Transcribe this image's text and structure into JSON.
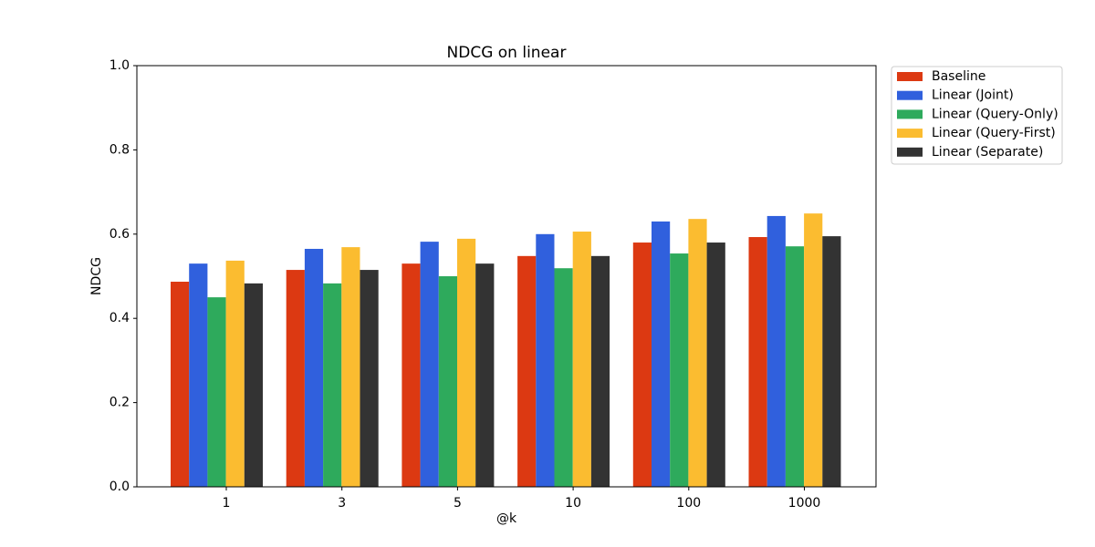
{
  "chart_data": {
    "type": "bar",
    "title": "NDCG on linear",
    "x_label": "@k",
    "y_label": "NDCG",
    "categories": [
      "1",
      "3",
      "5",
      "10",
      "100",
      "1000"
    ],
    "series": [
      {
        "name": "Baseline",
        "color": "#dc3912",
        "values": [
          0.487,
          0.515,
          0.53,
          0.548,
          0.58,
          0.593
        ]
      },
      {
        "name": "Linear (Joint)",
        "color": "#3060dd",
        "values": [
          0.53,
          0.565,
          0.582,
          0.6,
          0.63,
          0.643
        ]
      },
      {
        "name": "Linear (Query-Only)",
        "color": "#2eaa5c",
        "values": [
          0.45,
          0.483,
          0.5,
          0.519,
          0.554,
          0.571
        ]
      },
      {
        "name": "Linear (Query-First)",
        "color": "#fbbc30",
        "values": [
          0.537,
          0.569,
          0.589,
          0.606,
          0.636,
          0.649
        ]
      },
      {
        "name": "Linear (Separate)",
        "color": "#333333",
        "values": [
          0.483,
          0.515,
          0.53,
          0.548,
          0.58,
          0.595
        ]
      }
    ],
    "ylim": [
      0,
      1
    ],
    "yticks": [
      {
        "value": 0,
        "label": "0.0"
      },
      0.2,
      0.4,
      0.6,
      0.8,
      {
        "value": 1,
        "label": "1.0"
      }
    ],
    "grid": false,
    "legend": "outside-upper-right"
  }
}
